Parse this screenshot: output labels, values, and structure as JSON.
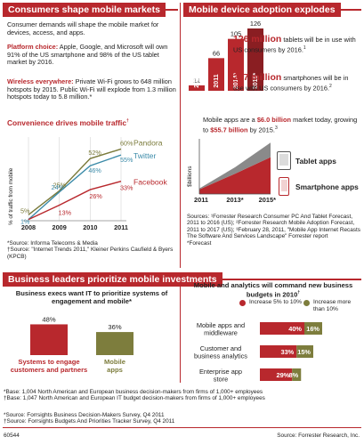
{
  "left_panel": {
    "header": "Consumers shape mobile markets",
    "intro": "Consumer demands will shape the mobile market for devices, access, and apps.",
    "platform_title": "Platform choice:",
    "platform_text": "Apple, Google, and Microsoft will own 91% of the US smartphone and 98% of the US tablet market by 2016.",
    "wireless_title": "Wireless everywhere:",
    "wireless_text": "Private Wi-Fi grows to 648 million hotspots by 2015. Public Wi-Fi will explode from 1.3 million hotspots today to 5.8 million.*",
    "traffic_title": "Convenience drives mobile traffic",
    "traffic_title_mark": "†",
    "sources": [
      "*Source: Informa Telecoms & Media",
      "†Source: \"Internet Trends 2011,\" Kleiner Perkins Caufield & Byers (KPCB)"
    ]
  },
  "right_panel": {
    "header": "Mobile device adoption explodes",
    "tablet_stat_big": "126 million",
    "tablet_stat_text": "tablets will be in use with US consumers by 2016.",
    "tablet_stat_mark": "1",
    "smartphone_stat_big": "257 million",
    "smartphone_stat_text": "smartphones will be in use with US consumers by 2016.",
    "smartphone_stat_mark": "2",
    "apps_text_1": "Mobile apps are a ",
    "apps_value_now": "$6.0 billion",
    "apps_text_2": " market today, growing to ",
    "apps_value_future": "$55.7 billion",
    "apps_text_3": " by 2015.",
    "apps_mark": "3",
    "tablet_apps_label": "Tablet apps",
    "smartphone_apps_label": "Smartphone apps",
    "sources": [
      "Sources: ¹Forrester Research Consumer PC And Tablet Forecast, 2011 to 2016 (US); ²Forrester Research Mobile Adoption Forecast, 2011 to 2017 (US); ³February 28, 2011, \"Mobile App Internet  Recasts The Software And Services Landscape\" Forrester report",
      "*Forecast"
    ]
  },
  "bottom_panel": {
    "header": "Business leaders prioritize mobile investments",
    "left_title": "Business execs want IT to prioritize systems of engagement and mobile*",
    "right_title": "Mobile and analytics will command new business budgets in 2010",
    "right_title_mark": "†",
    "legend_a": "Increase 5% to 10%",
    "legend_b": "Increase more than 10%",
    "bases": [
      "*Base: 1,004 North American and European business decision-makers from firms of 1,000+ employees",
      "†Base: 1,047 North American and European IT budget decision-makers from firms of 1,000+ employees"
    ],
    "sources": [
      "*Source: Forrsights Business Decision-Makers Survey, Q4 2011",
      "†Source: Forrsights Budgets And Priorities Tracker Survey, Q4 2011"
    ]
  },
  "footer": {
    "id": "60544",
    "source": "Source: Forrester Research, Inc."
  },
  "colors": {
    "brand_red": "#b8282d",
    "pandora": "#7a7a3a",
    "twitter": "#3a8aa8",
    "facebook": "#b8282d",
    "olive": "#7d7d3d",
    "smartphone_area": "#b8282d",
    "tablet_area": "#8a8a8a"
  },
  "chart_data": [
    {
      "type": "line",
      "title": "Convenience drives mobile traffic",
      "ylabel": "% of traffic from mobile",
      "x": [
        "2008",
        "2009",
        "2010",
        "2011"
      ],
      "ylim": [
        0,
        70
      ],
      "series": [
        {
          "name": "Pandora",
          "values": [
            5,
            25,
            52,
            60
          ],
          "labels": [
            "5%",
            "25%",
            "52%",
            "60%"
          ]
        },
        {
          "name": "Twitter",
          "values": [
            1,
            24,
            46,
            55
          ],
          "labels": [
            "1%",
            "24%",
            "46%",
            "55%"
          ]
        },
        {
          "name": "Facebook",
          "values": [
            1,
            13,
            26,
            33
          ],
          "labels": [
            "",
            "13%",
            "26%",
            "33%"
          ]
        }
      ]
    },
    {
      "type": "bar",
      "title": "",
      "categories": [
        "2010",
        "2011",
        "2014*",
        "2016*"
      ],
      "values": [
        11,
        66,
        105,
        126
      ],
      "ylim": [
        0,
        126
      ]
    },
    {
      "type": "area",
      "ylabel": "$billions",
      "x": [
        "2011",
        "2013*",
        "2015*"
      ],
      "series": [
        {
          "name": "Smartphone apps",
          "values": [
            5.0,
            22.0,
            40.0
          ]
        },
        {
          "name": "Tablet apps",
          "values": [
            1.0,
            7.0,
            15.7
          ]
        }
      ]
    },
    {
      "type": "bar",
      "title": "Business execs want IT to prioritize systems of engagement and mobile*",
      "categories": [
        "Systems to engage customers and partners",
        "Mobile apps"
      ],
      "values": [
        48,
        36
      ],
      "value_labels": [
        "48%",
        "36%"
      ],
      "ylim": [
        0,
        50
      ]
    },
    {
      "type": "bar",
      "title": "Mobile and analytics will command new business budgets in 2010",
      "categories": [
        "Mobile apps and middleware",
        "Customer and business analytics",
        "Enterprise app store"
      ],
      "series": [
        {
          "name": "Increase 5% to 10%",
          "values": [
            40,
            33,
            29
          ],
          "labels": [
            "40%",
            "33%",
            "29%"
          ]
        },
        {
          "name": "Increase more than 10%",
          "values": [
            16,
            15,
            8
          ],
          "labels": [
            "16%",
            "15%",
            "8%"
          ]
        }
      ],
      "stacked": true
    }
  ]
}
